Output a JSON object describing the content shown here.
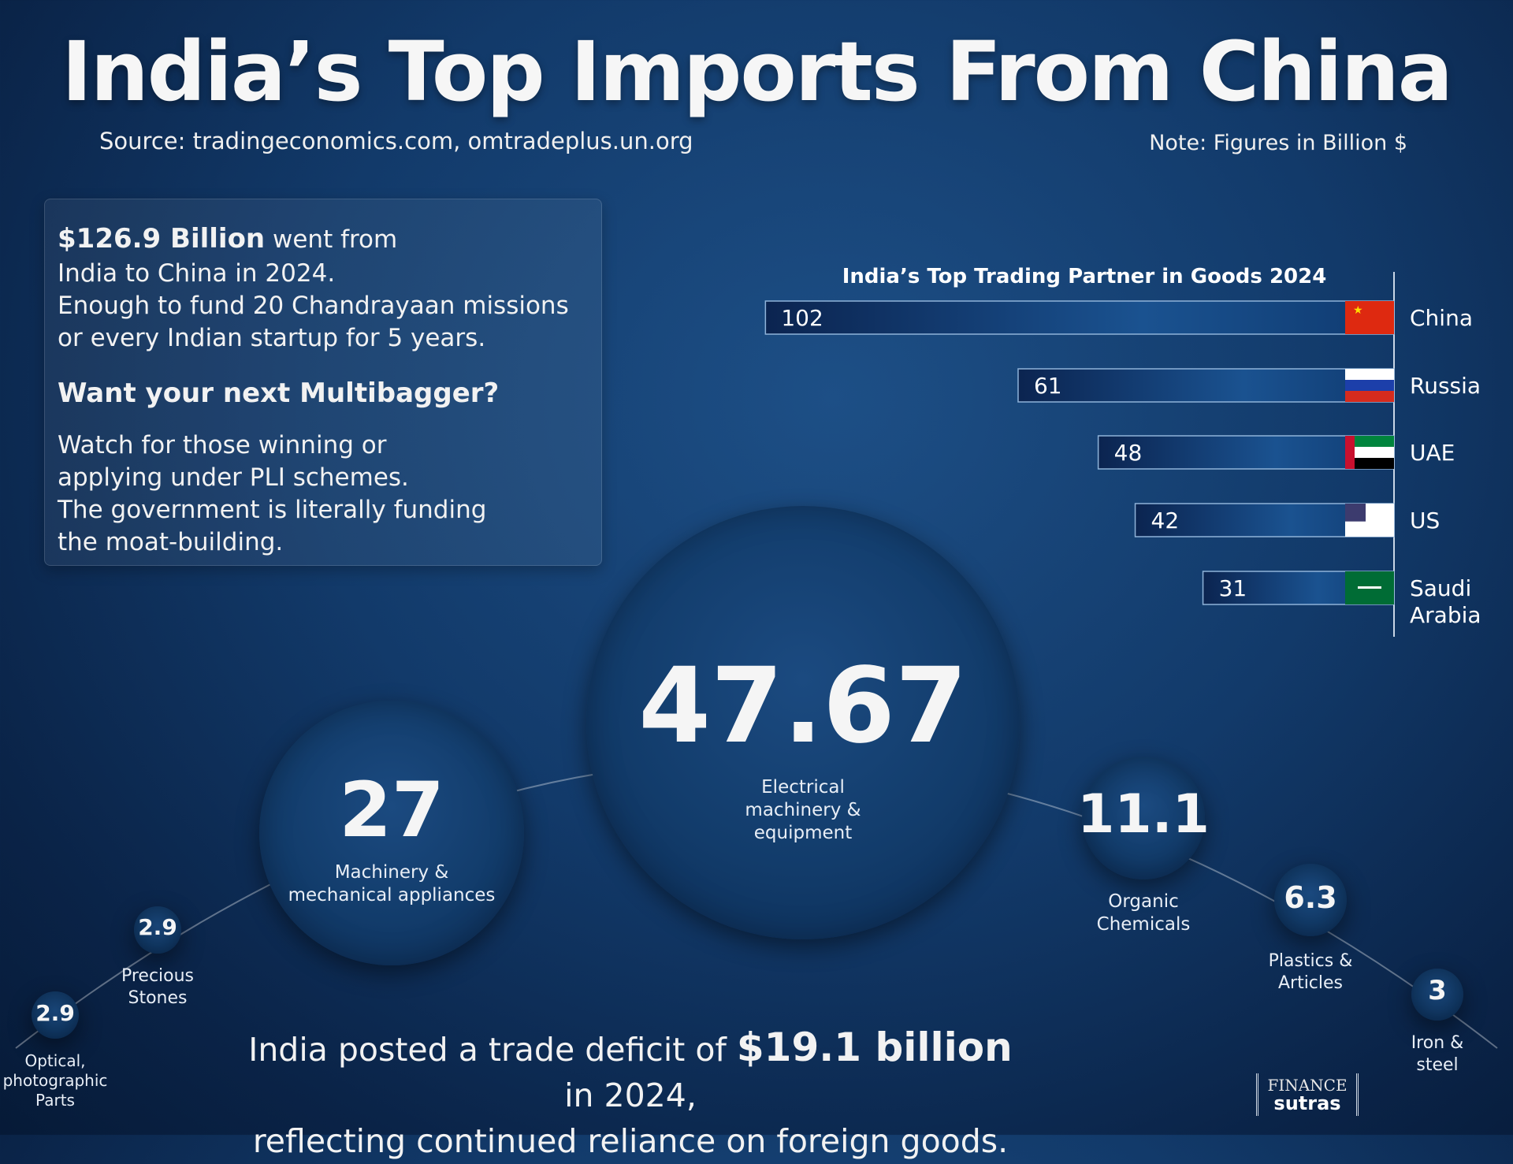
{
  "header": {
    "title": "India’s Top Imports From China",
    "source": "Source: tradingeconomics.com, omtradeplus.un.org",
    "note": "Note: Figures in Billion $"
  },
  "info": {
    "highlight": "$126.9 Billion",
    "line1_rest": " went from",
    "rest": "India to China in 2024.\nEnough to fund 20 Chandrayaan missions\nor every Indian startup for 5 years.",
    "question": "Want your next Multibagger?",
    "tip": "Watch for those winning or\napplying under PLI schemes.\nThe government is literally funding\nthe moat-building."
  },
  "footer": {
    "deficit_pre": "India posted a trade deficit of ",
    "deficit_value": "$19.1 billion",
    "deficit_post": " in 2024,",
    "deficit_line2": "reflecting continued reliance on foreign goods.",
    "logo_top": "FINANCE",
    "logo_bottom": "sutras"
  },
  "chart_data": [
    {
      "type": "bar",
      "orientation": "horizontal",
      "title": "India’s Top Trading Partner in Goods 2024",
      "categories": [
        "China",
        "Russia",
        "UAE",
        "US",
        "Saudi Arabia"
      ],
      "values": [
        102,
        61,
        48,
        42,
        31
      ],
      "unit": "Billion $",
      "colors": {
        "bar_dark": "#0b2450",
        "bar_light": "#1f5d9a",
        "border": "#8fb3d9"
      }
    },
    {
      "type": "bubble",
      "categories": [
        "Electrical machinery & equipment",
        "Machinery & mechanical appliances",
        "Organic Chemicals",
        "Plastics & Articles",
        "Iron & steel",
        "Precious Stones",
        "Optical, photographic Parts"
      ],
      "values": [
        47.67,
        27,
        11.1,
        6.3,
        3,
        2.9,
        2.9
      ],
      "value_labels": [
        "47.67",
        "27",
        "11.1",
        "6.3",
        "3",
        "2.9",
        "2.9"
      ],
      "unit": "Billion $"
    }
  ]
}
